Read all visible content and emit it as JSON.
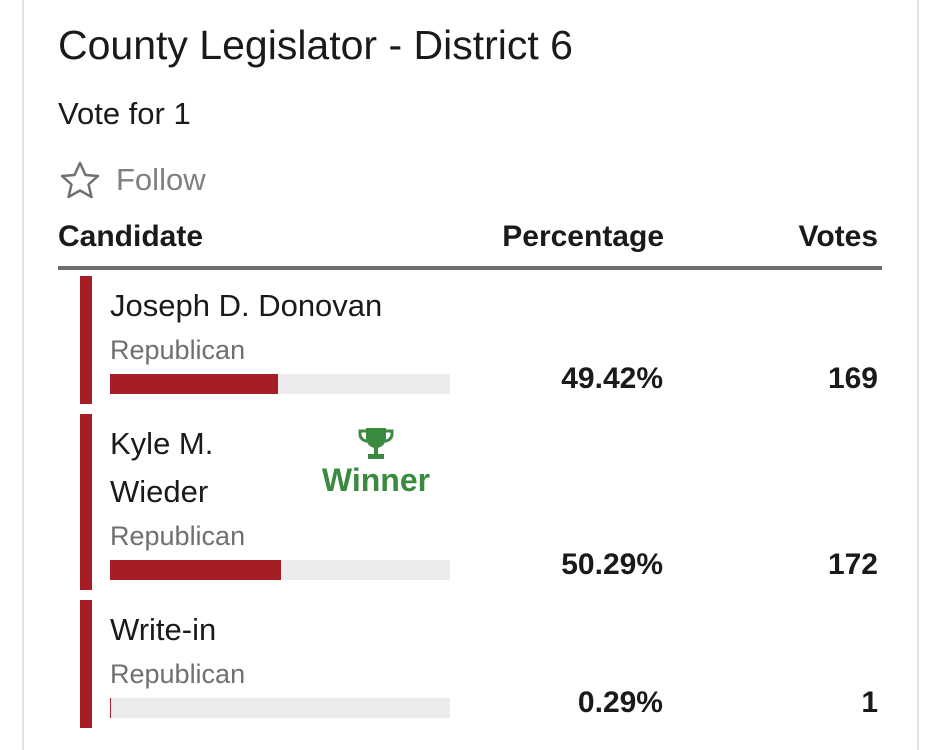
{
  "header": {
    "title": "County Legislator - District 6",
    "subtitle": "Vote for 1",
    "follow": "Follow"
  },
  "table": {
    "columns": [
      "Candidate",
      "Percentage",
      "Votes"
    ],
    "rows": [
      {
        "name": "Joseph D. Donovan",
        "party": "Republican",
        "percentage": {
          "value": 49.42,
          "label": "49.42%"
        },
        "votes": "169"
      },
      {
        "name": "Kyle M. Wieder",
        "party": "Republican",
        "winner": "Winner",
        "percentage": {
          "value": 50.29,
          "label": "50.29%"
        },
        "votes": "172"
      },
      {
        "name": "Write-in",
        "party": "Republican",
        "percentage": {
          "value": 0.29,
          "label": "0.29%"
        },
        "votes": "1"
      }
    ]
  }
}
